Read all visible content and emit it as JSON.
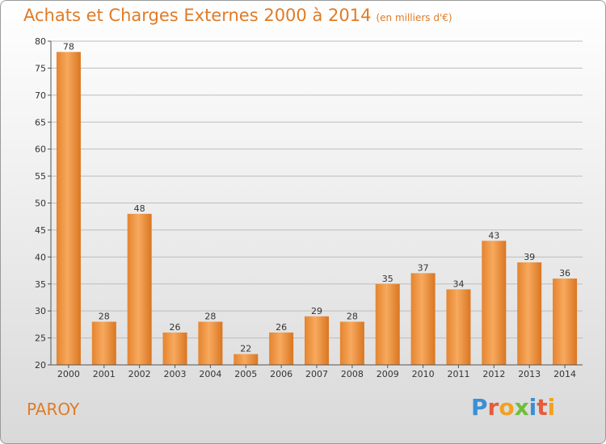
{
  "header": {
    "title": "Achats et Charges Externes 2000 à 2014",
    "unit": "(en milliers d'€)"
  },
  "footer": {
    "location": "PAROY",
    "brand": "Proxiti"
  },
  "colors": {
    "title": "#e07b26",
    "bar_light": "#f6a55a",
    "bar_dark": "#d87422"
  },
  "chart_data": {
    "type": "bar",
    "title": "Achats et Charges Externes 2000 à 2014",
    "subtitle": "(en milliers d'€)",
    "categories": [
      "2000",
      "2001",
      "2002",
      "2003",
      "2004",
      "2005",
      "2006",
      "2007",
      "2008",
      "2009",
      "2010",
      "2011",
      "2012",
      "2013",
      "2014"
    ],
    "values": [
      78,
      28,
      48,
      26,
      28,
      22,
      26,
      29,
      28,
      35,
      37,
      34,
      43,
      39,
      36
    ],
    "yticks": [
      20,
      25,
      30,
      35,
      40,
      45,
      50,
      55,
      60,
      65,
      70,
      75,
      80
    ],
    "ylim": [
      20,
      80
    ],
    "grid": true,
    "data_labels": true
  }
}
